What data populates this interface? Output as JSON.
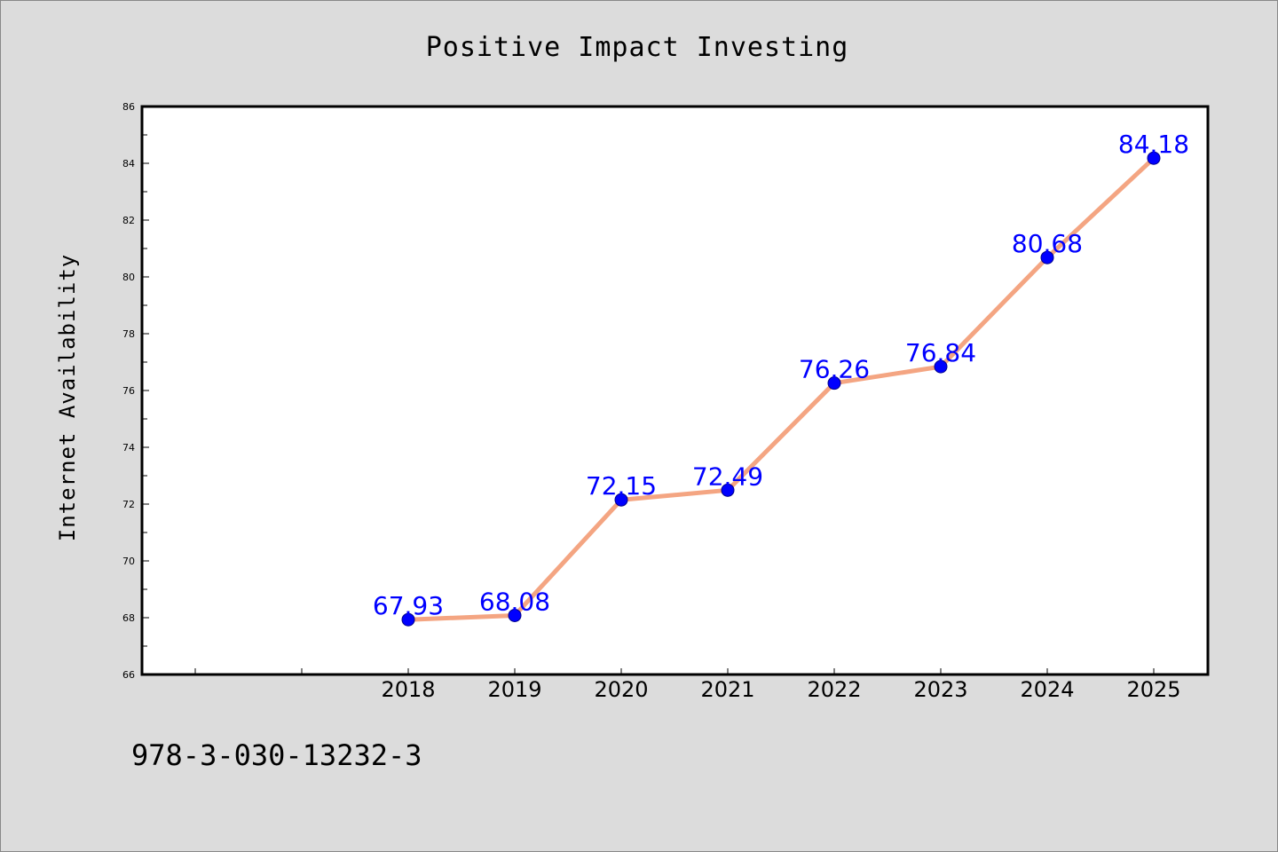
{
  "chart_data": {
    "type": "line",
    "title": "Positive Impact Investing",
    "xlabel": "",
    "ylabel": "Internet Availability",
    "categories": [
      "2018",
      "2019",
      "2020",
      "2021",
      "2022",
      "2023",
      "2024",
      "2025"
    ],
    "series": [
      {
        "values": [
          67.93,
          68.08,
          72.15,
          72.49,
          76.26,
          76.84,
          80.68,
          84.18
        ],
        "labels": [
          "67.93",
          "68.08",
          "72.15",
          "72.49",
          "76.26",
          "76.84",
          "80.68",
          "84.18"
        ]
      }
    ],
    "ylim": [
      66,
      86
    ],
    "yticks": [
      "66",
      "68",
      "70",
      "72",
      "74",
      "76",
      "78",
      "80",
      "82",
      "84",
      "86"
    ],
    "grid": false,
    "legend": "none",
    "colors": {
      "line": "#f4a582",
      "marker": "#0000ff",
      "marker_edge": "#00008b",
      "data_label": "#0000ff",
      "background": "#dcdcdc",
      "plot_area": "#ffffff"
    }
  },
  "footer": {
    "code": "978-3-030-13232-3"
  }
}
